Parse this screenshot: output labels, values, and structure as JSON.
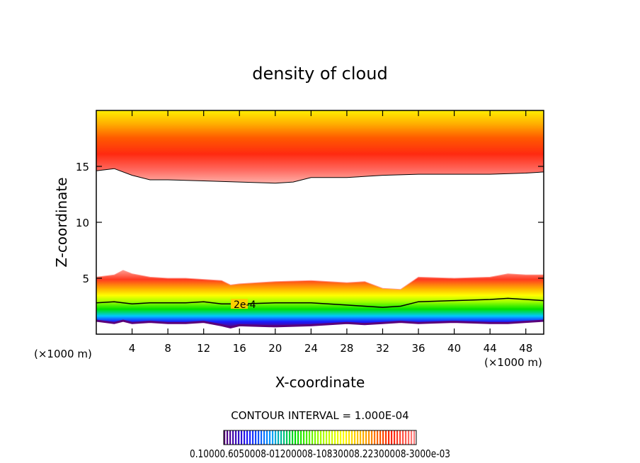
{
  "chart_data": {
    "type": "heatmap",
    "title": "density of cloud",
    "xlabel": "X-coordinate",
    "ylabel": "Z-coordinate",
    "x_unit_left": "(×1000 m)",
    "x_unit_right": "(×1000 m)",
    "xlim": [
      0,
      50
    ],
    "ylim": [
      0,
      20
    ],
    "x_ticks": [
      4,
      8,
      12,
      16,
      20,
      24,
      28,
      32,
      36,
      40,
      44,
      48
    ],
    "x_tick_labels": [
      "4",
      "8",
      "12",
      "16",
      "20",
      "24",
      "28",
      "32",
      "36",
      "40",
      "44",
      "48"
    ],
    "y_ticks": [
      5,
      10,
      15
    ],
    "y_tick_labels": [
      "5",
      "10",
      "15"
    ],
    "contour_interval_text": "CONTOUR INTERVAL = 1.000E-04",
    "contour_label": "2e-4",
    "colorbar_text": "0.10000.6050008-01200008-10830008.22300008-3000e-03",
    "colormap": [
      "#5a007a",
      "#1a1aff",
      "#00a0ff",
      "#00e000",
      "#a0ff00",
      "#ffff00",
      "#ffa000",
      "#ff2000",
      "#ff8080"
    ],
    "upper_cloud_layer": {
      "x": [
        0,
        2,
        4,
        6,
        8,
        12,
        16,
        20,
        22,
        24,
        28,
        32,
        36,
        40,
        44,
        48,
        50
      ],
      "base_z": [
        14.6,
        14.8,
        14.2,
        13.8,
        13.8,
        13.7,
        13.6,
        13.5,
        13.6,
        14.0,
        14.0,
        14.2,
        14.3,
        14.3,
        14.3,
        14.4,
        14.5
      ],
      "top_z": 20
    },
    "lower_cloud_layer": {
      "x": [
        0,
        2,
        3,
        4,
        6,
        8,
        10,
        12,
        14,
        15,
        16,
        20,
        24,
        28,
        30,
        32,
        34,
        36,
        40,
        44,
        46,
        48,
        50
      ],
      "top_z": [
        5.1,
        5.3,
        5.7,
        5.4,
        5.1,
        5.0,
        5.0,
        4.9,
        4.8,
        4.4,
        4.5,
        4.7,
        4.8,
        4.6,
        4.7,
        4.1,
        4.0,
        5.1,
        5.0,
        5.1,
        5.4,
        5.3,
        5.3
      ],
      "contour_2e4_z": [
        2.8,
        2.9,
        2.8,
        2.7,
        2.8,
        2.8,
        2.8,
        2.9,
        2.7,
        2.7,
        2.7,
        2.8,
        2.8,
        2.6,
        2.5,
        2.4,
        2.5,
        2.9,
        3.0,
        3.1,
        3.2,
        3.1,
        3.0
      ],
      "base_z": [
        1.2,
        1.0,
        1.2,
        1.0,
        1.1,
        1.0,
        1.0,
        1.1,
        0.8,
        0.6,
        0.8,
        0.7,
        0.8,
        1.0,
        0.9,
        1.0,
        1.1,
        1.0,
        1.1,
        1.0,
        1.0,
        1.1,
        1.2
      ]
    }
  }
}
